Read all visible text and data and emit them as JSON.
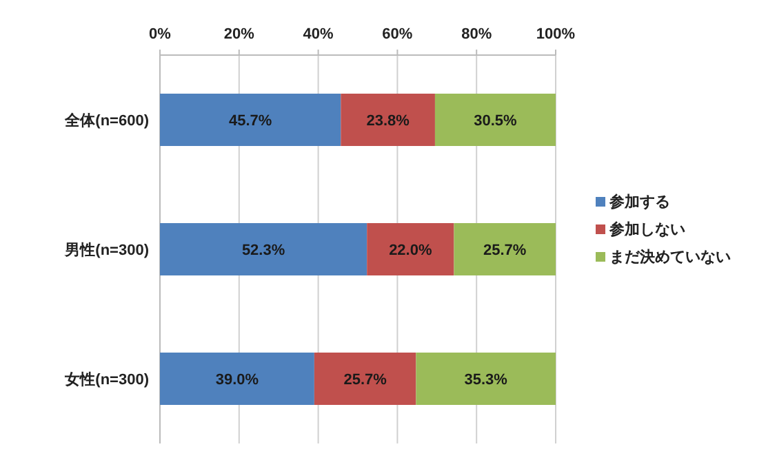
{
  "chart_data": {
    "type": "bar",
    "orientation": "horizontal",
    "stacked": true,
    "categories": [
      "全体(n=600)",
      "男性(n=300)",
      "女性(n=300)"
    ],
    "series": [
      {
        "name": "参加する",
        "color": "#4f81bd",
        "values": [
          45.7,
          52.3,
          39.0
        ],
        "value_labels": [
          "45.7%",
          "52.3%",
          "39.0%"
        ]
      },
      {
        "name": "参加しない",
        "color": "#c0504d",
        "values": [
          23.8,
          22.0,
          25.7
        ],
        "value_labels": [
          "23.8%",
          "22.0%",
          "25.7%"
        ]
      },
      {
        "name": "まだ決めていない",
        "color": "#9bbb59",
        "values": [
          30.5,
          25.7,
          35.3
        ],
        "value_labels": [
          "30.5%",
          "25.7%",
          "35.3%"
        ]
      }
    ],
    "xlim": [
      0,
      100
    ],
    "xticks": [
      {
        "value": 0,
        "label": "0%"
      },
      {
        "value": 20,
        "label": "20%"
      },
      {
        "value": 40,
        "label": "40%"
      },
      {
        "value": 60,
        "label": "60%"
      },
      {
        "value": 80,
        "label": "80%"
      },
      {
        "value": 100,
        "label": "100%"
      }
    ],
    "grid": "x",
    "legend": "right"
  }
}
